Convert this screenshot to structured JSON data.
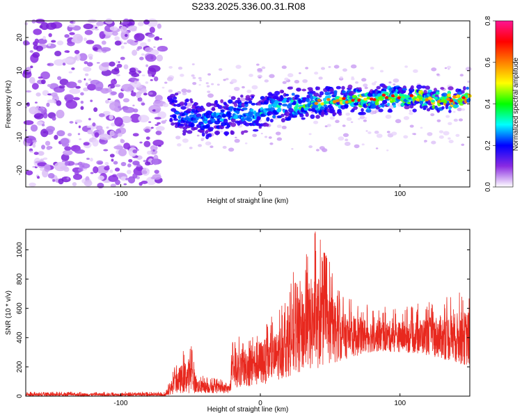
{
  "title": "S233.2025.336.00.31.R08",
  "chart_data": [
    {
      "type": "heatmap",
      "xlabel": "Height of straight line (km)",
      "ylabel": "Frequency (Hz)",
      "xlim": [
        -168,
        150
      ],
      "ylim": [
        -25,
        25
      ],
      "xticks": [
        -100,
        0,
        100
      ],
      "yticks": [
        -20,
        -10,
        0,
        10,
        20
      ],
      "colorbar": {
        "label": "Normalized spectral amplitude",
        "range": [
          0,
          0.8
        ],
        "ticks": [
          "0.0",
          "0.2",
          "0.4",
          "0.6",
          "0.8"
        ],
        "colors": [
          "#ffffff",
          "#8a2be2",
          "#0000ff",
          "#00ffff",
          "#00ff00",
          "#ffff00",
          "#ff8000",
          "#ff0000",
          "#ff1493"
        ]
      },
      "noise_region_x": [
        -168,
        -70
      ],
      "signal_track": [
        {
          "x": -65,
          "freq": -2
        },
        {
          "x": -40,
          "freq": -5
        },
        {
          "x": -20,
          "freq": -3
        },
        {
          "x": -5,
          "freq": -3
        },
        {
          "x": 10,
          "freq": -1
        },
        {
          "x": 30,
          "freq": 0
        },
        {
          "x": 50,
          "freq": 1
        },
        {
          "x": 70,
          "freq": 1
        },
        {
          "x": 90,
          "freq": 2
        },
        {
          "x": 110,
          "freq": 2
        },
        {
          "x": 130,
          "freq": 1
        },
        {
          "x": 150,
          "freq": 2
        }
      ]
    },
    {
      "type": "line",
      "xlabel": "Height of straight line (km)",
      "ylabel": "SNR (10 * v/v)",
      "xlim": [
        -168,
        150
      ],
      "ylim": [
        0,
        1140
      ],
      "xticks": [
        -100,
        0,
        100
      ],
      "yticks": [
        0,
        200,
        400,
        600,
        800,
        1000
      ],
      "color": "#e8281e",
      "envelope": [
        {
          "x": -168,
          "low": 0,
          "high": 30
        },
        {
          "x": -68,
          "low": 0,
          "high": 30
        },
        {
          "x": -60,
          "low": 20,
          "high": 250
        },
        {
          "x": -50,
          "low": 20,
          "high": 380
        },
        {
          "x": -45,
          "low": 20,
          "high": 150
        },
        {
          "x": -30,
          "low": 20,
          "high": 120
        },
        {
          "x": -22,
          "low": 20,
          "high": 100
        },
        {
          "x": -20,
          "low": 60,
          "high": 380
        },
        {
          "x": -5,
          "low": 60,
          "high": 500
        },
        {
          "x": 10,
          "low": 100,
          "high": 550
        },
        {
          "x": 25,
          "low": 150,
          "high": 880
        },
        {
          "x": 40,
          "low": 180,
          "high": 1140
        },
        {
          "x": 60,
          "low": 250,
          "high": 700
        },
        {
          "x": 80,
          "low": 300,
          "high": 620
        },
        {
          "x": 100,
          "low": 300,
          "high": 600
        },
        {
          "x": 120,
          "low": 280,
          "high": 650
        },
        {
          "x": 150,
          "low": 200,
          "high": 750
        }
      ]
    }
  ]
}
